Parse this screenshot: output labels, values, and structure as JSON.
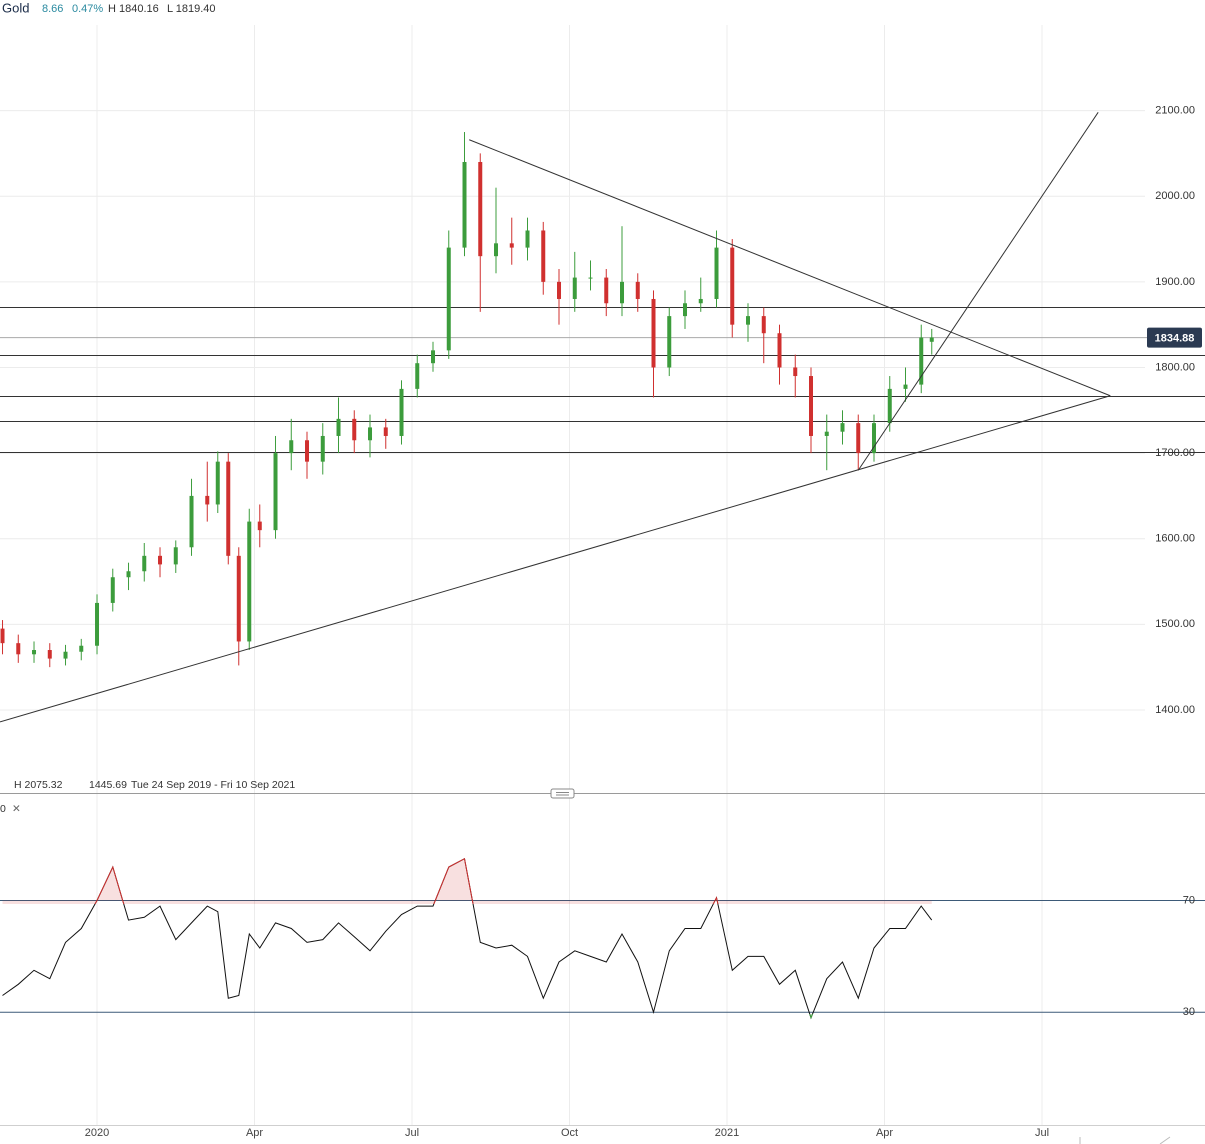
{
  "header": {
    "symbol": "Gold",
    "change": "8.66",
    "change_pct": "0.47%",
    "high": "H 1840.16",
    "low": "L 1819.40"
  },
  "range_info": {
    "high": "H 2075.32",
    "low": "1445.69",
    "period": "Tue 24 Sep 2019 - Fri 10 Sep 2021"
  },
  "rsi_info": {
    "label": "0",
    "close": "✕"
  },
  "chart_data": [
    {
      "type": "candlestick",
      "xlim": [
        -1.848,
        19.962
      ],
      "xticks": [
        {
          "value": 0,
          "label": "2020"
        },
        {
          "value": 3,
          "label": "Apr"
        },
        {
          "value": 6,
          "label": "Jul"
        },
        {
          "value": 9,
          "label": "Oct"
        },
        {
          "value": 12,
          "label": "2021"
        },
        {
          "value": 15,
          "label": "Apr"
        },
        {
          "value": 18,
          "label": "Jul"
        }
      ],
      "ylim": [
        1303,
        2200
      ],
      "yticks": [
        {
          "value": 1400,
          "label": "1400.00"
        },
        {
          "value": 1500,
          "label": "1500.00"
        },
        {
          "value": 1600,
          "label": "1600.00"
        },
        {
          "value": 1700,
          "label": "1700.00"
        },
        {
          "value": 1800,
          "label": "1800.00"
        },
        {
          "value": 1900,
          "label": "1900.00"
        },
        {
          "value": 2000,
          "label": "2000.00"
        },
        {
          "value": 2100,
          "label": "2100.00"
        }
      ],
      "grid": true,
      "up_color": "#3c9c3c",
      "down_color": "#d0302f",
      "x": [
        -1.8,
        -1.5,
        -1.2,
        -0.9,
        -0.6,
        -0.3,
        0,
        0.3,
        0.6,
        0.9,
        1.2,
        1.5,
        1.8,
        2.1,
        2.3,
        2.5,
        2.7,
        2.9,
        3.1,
        3.4,
        3.7,
        4.0,
        4.3,
        4.6,
        4.9,
        5.2,
        5.5,
        5.8,
        6.1,
        6.4,
        6.7,
        7.0,
        7.3,
        7.6,
        7.9,
        8.2,
        8.5,
        8.8,
        9.1,
        9.4,
        9.7,
        10.0,
        10.3,
        10.6,
        10.9,
        11.2,
        11.5,
        11.8,
        12.1,
        12.4,
        12.7,
        13.0,
        13.3,
        13.6,
        13.9,
        14.2,
        14.5,
        14.8,
        15.1,
        15.4,
        15.7,
        15.9
      ],
      "open": [
        1495,
        1478,
        1465,
        1470,
        1460,
        1468,
        1475,
        1525,
        1555,
        1562,
        1580,
        1570,
        1590,
        1650,
        1640,
        1690,
        1580,
        1480,
        1620,
        1610,
        1700,
        1715,
        1690,
        1720,
        1740,
        1715,
        1730,
        1720,
        1775,
        1805,
        1820,
        1940,
        2040,
        1930,
        1945,
        1940,
        1960,
        1900,
        1880,
        1905,
        1905,
        1875,
        1900,
        1880,
        1800,
        1860,
        1875,
        1880,
        1940,
        1850,
        1860,
        1840,
        1800,
        1790,
        1720,
        1725,
        1735,
        1700,
        1735,
        1775,
        1780,
        1830
      ],
      "high": [
        1505,
        1488,
        1480,
        1478,
        1476,
        1483,
        1535,
        1565,
        1572,
        1595,
        1590,
        1598,
        1670,
        1690,
        1702,
        1700,
        1590,
        1635,
        1640,
        1720,
        1740,
        1725,
        1735,
        1765,
        1750,
        1745,
        1740,
        1785,
        1815,
        1830,
        1960,
        2075,
        2050,
        2010,
        1975,
        1975,
        1970,
        1915,
        1935,
        1925,
        1915,
        1965,
        1910,
        1890,
        1870,
        1890,
        1905,
        1960,
        1950,
        1875,
        1870,
        1850,
        1815,
        1800,
        1745,
        1750,
        1745,
        1745,
        1790,
        1800,
        1850,
        1845
      ],
      "low": [
        1465,
        1455,
        1455,
        1450,
        1452,
        1458,
        1465,
        1515,
        1540,
        1550,
        1555,
        1560,
        1580,
        1620,
        1630,
        1570,
        1452,
        1470,
        1590,
        1600,
        1680,
        1670,
        1675,
        1700,
        1700,
        1695,
        1705,
        1710,
        1765,
        1795,
        1810,
        1930,
        1865,
        1910,
        1920,
        1925,
        1885,
        1850,
        1865,
        1890,
        1860,
        1860,
        1865,
        1765,
        1790,
        1845,
        1865,
        1870,
        1835,
        1830,
        1805,
        1780,
        1765,
        1700,
        1680,
        1710,
        1680,
        1690,
        1725,
        1760,
        1770,
        1815
      ],
      "close": [
        1478,
        1465,
        1470,
        1460,
        1468,
        1475,
        1525,
        1555,
        1562,
        1580,
        1570,
        1590,
        1650,
        1640,
        1690,
        1580,
        1480,
        1620,
        1610,
        1700,
        1715,
        1690,
        1720,
        1740,
        1715,
        1730,
        1720,
        1775,
        1805,
        1820,
        1940,
        2040,
        1930,
        1945,
        1940,
        1960,
        1900,
        1880,
        1905,
        1905,
        1875,
        1900,
        1880,
        1800,
        1860,
        1875,
        1880,
        1940,
        1850,
        1860,
        1840,
        1800,
        1790,
        1720,
        1725,
        1735,
        1700,
        1735,
        1775,
        1780,
        1835,
        1835
      ],
      "levels": [
        1871,
        1814,
        1767,
        1737,
        1701
      ],
      "last_price": {
        "value": 1834.88,
        "label": "1834.88"
      },
      "trendlines": [
        {
          "x": [
            7.09,
            19.3
          ],
          "y": [
            2066,
            1767
          ]
        },
        {
          "x": [
            -1.848,
            19.3
          ],
          "y": [
            1386,
            1767
          ]
        },
        {
          "x": [
            14.5,
            19.07
          ],
          "y": [
            1680,
            2098
          ]
        }
      ]
    },
    {
      "type": "rsi",
      "xlim": [
        -1.848,
        19.962
      ],
      "ylim": [
        -10.4,
        107.8
      ],
      "yticks": [
        30,
        70
      ],
      "line_color": "#111",
      "over_color": "#d0302f",
      "under_color": "#3c9c3c",
      "x": [
        -1.8,
        -1.5,
        -1.2,
        -0.9,
        -0.6,
        -0.3,
        0,
        0.3,
        0.6,
        0.9,
        1.2,
        1.5,
        1.8,
        2.1,
        2.3,
        2.5,
        2.7,
        2.9,
        3.1,
        3.4,
        3.7,
        4.0,
        4.3,
        4.6,
        4.9,
        5.2,
        5.5,
        5.8,
        6.1,
        6.4,
        6.7,
        7.0,
        7.3,
        7.6,
        7.9,
        8.2,
        8.5,
        8.8,
        9.1,
        9.4,
        9.7,
        10.0,
        10.3,
        10.6,
        10.9,
        11.2,
        11.5,
        11.8,
        12.1,
        12.4,
        12.7,
        13.0,
        13.3,
        13.6,
        13.9,
        14.2,
        14.5,
        14.8,
        15.1,
        15.4,
        15.7,
        15.9
      ],
      "values": [
        36,
        40,
        45,
        42,
        55,
        60,
        70,
        82,
        63,
        64,
        68,
        56,
        62,
        68,
        66,
        35,
        36,
        58,
        53,
        62,
        60,
        55,
        56,
        62,
        57,
        52,
        59,
        65,
        68,
        68,
        82,
        85,
        55,
        53,
        54,
        50,
        35,
        48,
        52,
        50,
        48,
        58,
        48,
        30,
        52,
        60,
        60,
        71,
        45,
        50,
        50,
        40,
        45,
        28,
        42,
        48,
        35,
        53,
        60,
        60,
        68,
        63
      ]
    }
  ]
}
